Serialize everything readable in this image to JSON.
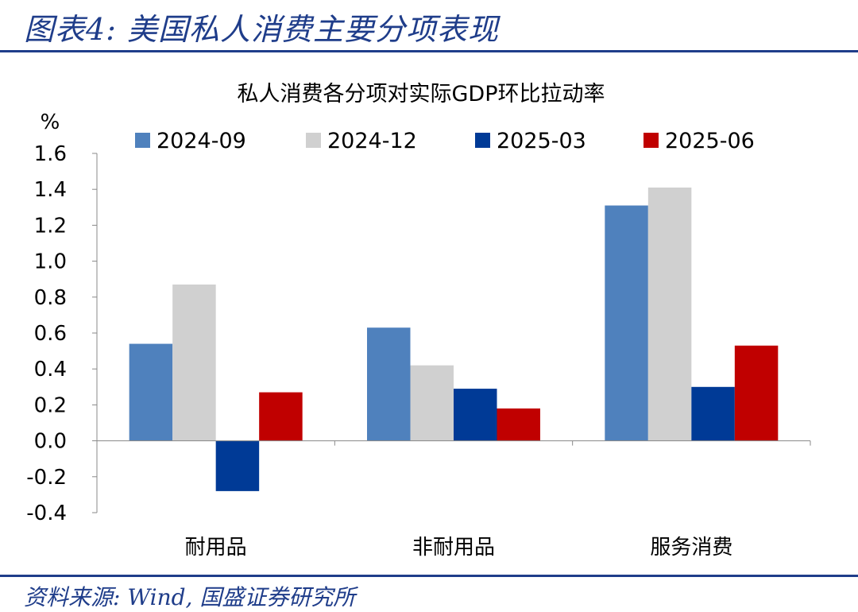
{
  "figure_title": "图表4:  美国私人消费主要分项表现",
  "source": "资料来源:  Wind,  国盛证券研究所",
  "chart_data": {
    "type": "bar",
    "title": "私人消费各分项对实际GDP环比拉动率",
    "ylabel": "%",
    "xlabel": "",
    "ylim": [
      -0.4,
      1.6
    ],
    "yticks": [
      "-0.4",
      "-0.2",
      "0.0",
      "0.2",
      "0.4",
      "0.6",
      "0.8",
      "1.0",
      "1.2",
      "1.4",
      "1.6"
    ],
    "categories": [
      "耐用品",
      "非耐用品",
      "服务消费"
    ],
    "series": [
      {
        "name": "2024-09",
        "color": "#4f81bd",
        "values": [
          0.54,
          0.63,
          1.31
        ]
      },
      {
        "name": "2024-12",
        "color": "#d0d0d0",
        "values": [
          0.87,
          0.42,
          1.41
        ]
      },
      {
        "name": "2025-03",
        "color": "#003a96",
        "values": [
          -0.28,
          0.29,
          0.3
        ]
      },
      {
        "name": "2025-06",
        "color": "#c00000",
        "values": [
          0.27,
          0.18,
          0.53
        ]
      }
    ],
    "legend": "top",
    "grid": false
  }
}
